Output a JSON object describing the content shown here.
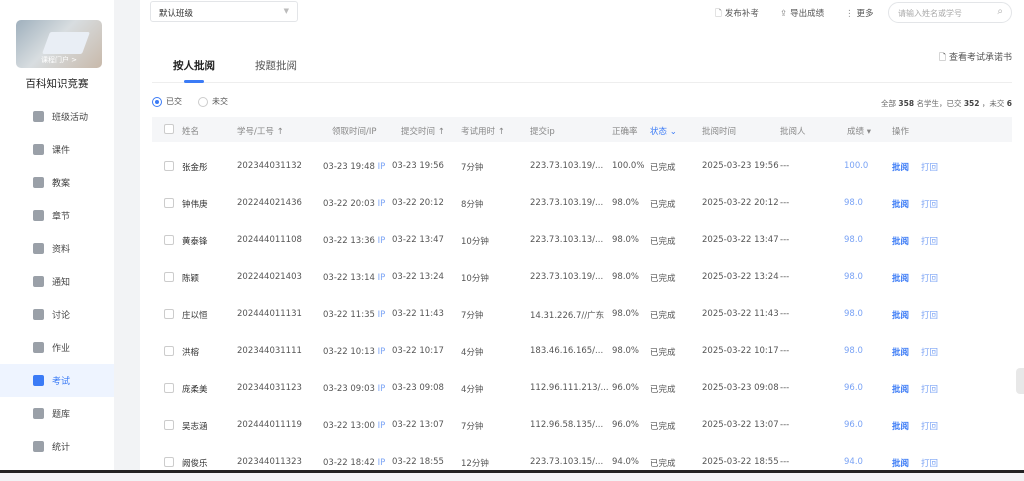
{
  "sidebar": {
    "course_title": "百科知识竞赛",
    "cover_caption": "课程门户 >",
    "items": [
      {
        "label": "班级活动",
        "icon": "grid-icon"
      },
      {
        "label": "课件",
        "icon": "file-icon"
      },
      {
        "label": "教案",
        "icon": "document-icon"
      },
      {
        "label": "章节",
        "icon": "chapter-icon"
      },
      {
        "label": "资料",
        "icon": "folder-icon"
      },
      {
        "label": "通知",
        "icon": "speaker-icon"
      },
      {
        "label": "讨论",
        "icon": "chat-icon"
      },
      {
        "label": "作业",
        "icon": "edit-icon"
      },
      {
        "label": "考试",
        "icon": "exam-icon",
        "active": true
      },
      {
        "label": "题库",
        "icon": "database-icon"
      },
      {
        "label": "统计",
        "icon": "pie-chart-icon"
      }
    ]
  },
  "toolbar": {
    "class_select": "默认班级",
    "publish_makeup": "发布补考",
    "export_scores": "导出成绩",
    "more": "更多",
    "search_placeholder": "请输入姓名或学号"
  },
  "tabs": [
    {
      "label": "按人批阅",
      "active": true
    },
    {
      "label": "按题批阅"
    }
  ],
  "view_promise": "查看考试承诺书",
  "filters": {
    "submitted": "已交",
    "not_submitted": "未交",
    "selected": "submitted"
  },
  "summary": {
    "prefix": "全部",
    "total": "358",
    "mid": "名学生，已交",
    "submitted": "352",
    "mid2": "，未交",
    "not_submitted": "6"
  },
  "table": {
    "headers": {
      "name": "姓名",
      "id": "学号/工号",
      "receive": "领取时间/IP",
      "submit": "提交时间",
      "duration": "考试用时",
      "ip": "提交ip",
      "accuracy": "正确率",
      "status": "状态",
      "review_time": "批阅时间",
      "reviewer": "批阅人",
      "score": "成绩",
      "actions": "操作"
    },
    "ip_tag": "IP",
    "action_review": "批阅",
    "action_return": "打回",
    "rows": [
      {
        "name": "张金彤",
        "id": "202344031132",
        "receive": "03-23 19:48",
        "submit": "03-23 19:56",
        "duration": "7分钟",
        "ip": "223.73.103.19/...",
        "accuracy": "100.0%",
        "status": "已完成",
        "review_time": "2025-03-23 19:56",
        "reviewer": "---",
        "score": "100.0"
      },
      {
        "name": "钟伟庚",
        "id": "202244021436",
        "receive": "03-22 20:03",
        "submit": "03-22 20:12",
        "duration": "8分钟",
        "ip": "223.73.103.19/...",
        "accuracy": "98.0%",
        "status": "已完成",
        "review_time": "2025-03-22 20:12",
        "reviewer": "---",
        "score": "98.0"
      },
      {
        "name": "黄泰锋",
        "id": "202444011108",
        "receive": "03-22 13:36",
        "submit": "03-22 13:47",
        "duration": "10分钟",
        "ip": "223.73.103.13/...",
        "accuracy": "98.0%",
        "status": "已完成",
        "review_time": "2025-03-22 13:47",
        "reviewer": "---",
        "score": "98.0"
      },
      {
        "name": "陈颖",
        "id": "202244021403",
        "receive": "03-22 13:14",
        "submit": "03-22 13:24",
        "duration": "10分钟",
        "ip": "223.73.103.19/...",
        "accuracy": "98.0%",
        "status": "已完成",
        "review_time": "2025-03-22 13:24",
        "reviewer": "---",
        "score": "98.0"
      },
      {
        "name": "庄以恒",
        "id": "202444011131",
        "receive": "03-22 11:35",
        "submit": "03-22 11:43",
        "duration": "7分钟",
        "ip": "14.31.226.7//广东",
        "accuracy": "98.0%",
        "status": "已完成",
        "review_time": "2025-03-22 11:43",
        "reviewer": "---",
        "score": "98.0"
      },
      {
        "name": "洪榕",
        "id": "202344031111",
        "receive": "03-22 10:13",
        "submit": "03-22 10:17",
        "duration": "4分钟",
        "ip": "183.46.16.165/...",
        "accuracy": "98.0%",
        "status": "已完成",
        "review_time": "2025-03-22 10:17",
        "reviewer": "---",
        "score": "98.0"
      },
      {
        "name": "庞柔美",
        "id": "202344031123",
        "receive": "03-23 09:03",
        "submit": "03-23 09:08",
        "duration": "4分钟",
        "ip": "112.96.111.213/...",
        "accuracy": "96.0%",
        "status": "已完成",
        "review_time": "2025-03-23 09:08",
        "reviewer": "---",
        "score": "96.0"
      },
      {
        "name": "吴志涵",
        "id": "202444011119",
        "receive": "03-22 13:00",
        "submit": "03-22 13:07",
        "duration": "7分钟",
        "ip": "112.96.58.135/...",
        "accuracy": "96.0%",
        "status": "已完成",
        "review_time": "2025-03-22 13:07",
        "reviewer": "---",
        "score": "96.0"
      },
      {
        "name": "阙俊乐",
        "id": "202344011323",
        "receive": "03-22 18:42",
        "submit": "03-22 18:55",
        "duration": "12分钟",
        "ip": "223.73.103.15/...",
        "accuracy": "94.0%",
        "status": "已完成",
        "review_time": "2025-03-22 18:55",
        "reviewer": "---",
        "score": "94.0"
      }
    ]
  },
  "colors": {
    "accent": "#3b7bf6"
  }
}
